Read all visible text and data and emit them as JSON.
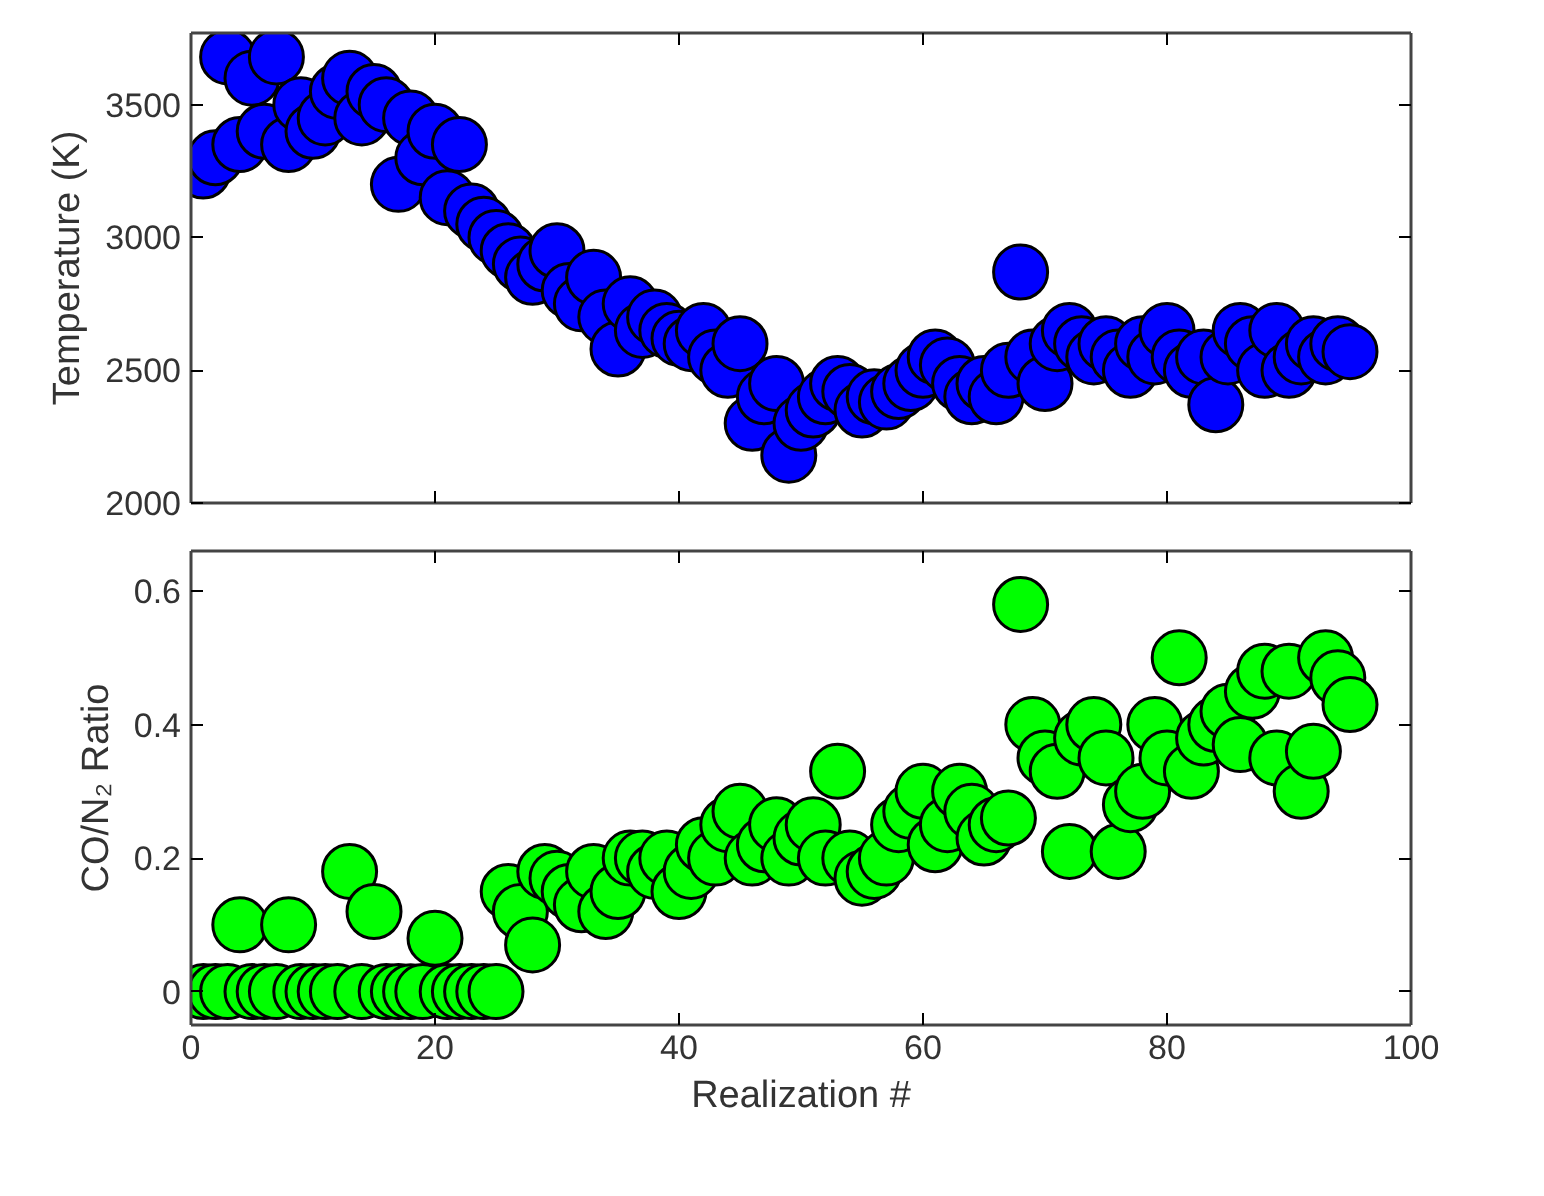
{
  "chart_data": [
    {
      "type": "scatter",
      "ylabel": "Temperature (K)",
      "xlim": [
        0,
        100
      ],
      "xticks": [
        0,
        20,
        40,
        60,
        80,
        100
      ],
      "ylim": [
        2000,
        3770
      ],
      "yticks": [
        2000,
        2500,
        3000,
        3500
      ],
      "tick_labels": "y",
      "grid": false,
      "marker": "circle",
      "x": [
        1,
        2,
        3,
        4,
        5,
        6,
        7,
        8,
        9,
        10,
        11,
        12,
        13,
        14,
        15,
        16,
        17,
        18,
        19,
        20,
        21,
        22,
        23,
        24,
        25,
        26,
        27,
        28,
        29,
        30,
        31,
        32,
        33,
        34,
        35,
        36,
        37,
        38,
        39,
        40,
        41,
        42,
        43,
        44,
        45,
        46,
        47,
        48,
        49,
        50,
        51,
        52,
        53,
        54,
        55,
        56,
        57,
        58,
        59,
        60,
        61,
        62,
        63,
        64,
        65,
        66,
        67,
        68,
        69,
        70,
        71,
        72,
        73,
        74,
        75,
        76,
        77,
        78,
        79,
        80,
        81,
        82,
        83,
        84,
        85,
        86,
        87,
        88,
        89,
        90,
        91,
        92,
        93,
        94,
        95
      ],
      "series": [
        {
          "color": "#0000ff",
          "values": [
            3250,
            3300,
            3680,
            3350,
            3600,
            3400,
            3680,
            3350,
            3500,
            3400,
            3450,
            3550,
            3600,
            3450,
            3550,
            3500,
            3200,
            3450,
            3300,
            3400,
            3150,
            3350,
            3100,
            3050,
            3000,
            2950,
            2900,
            2850,
            2900,
            2950,
            2800,
            2750,
            2850,
            2700,
            2580,
            2750,
            2650,
            2700,
            2650,
            2620,
            2600,
            2650,
            2550,
            2500,
            2600,
            2300,
            2400,
            2450,
            2180,
            2300,
            2350,
            2400,
            2450,
            2420,
            2350,
            2400,
            2380,
            2420,
            2450,
            2500,
            2550,
            2520,
            2450,
            2400,
            2450,
            2400,
            2500,
            2870,
            2550,
            2450,
            2600,
            2650,
            2600,
            2550,
            2600,
            2550,
            2500,
            2600,
            2550,
            2650,
            2550,
            2500,
            2550,
            2370,
            2550,
            2650,
            2600,
            2500,
            2650,
            2500,
            2550,
            2600,
            2550,
            2600,
            2570
          ]
        }
      ]
    },
    {
      "type": "scatter",
      "xlabel": "Realization #",
      "ylabel": "CO/N₂ Ratio",
      "xlim": [
        0,
        100
      ],
      "xticks": [
        0,
        20,
        40,
        60,
        80,
        100
      ],
      "ylim": [
        -0.05,
        0.66
      ],
      "yticks": [
        0,
        0.2,
        0.4,
        0.6
      ],
      "grid": false,
      "marker": "circle",
      "x": [
        1,
        2,
        3,
        4,
        5,
        6,
        7,
        8,
        9,
        10,
        11,
        12,
        13,
        14,
        15,
        16,
        17,
        18,
        19,
        20,
        21,
        22,
        23,
        24,
        25,
        26,
        27,
        28,
        29,
        30,
        31,
        32,
        33,
        34,
        35,
        36,
        37,
        38,
        39,
        40,
        41,
        42,
        43,
        44,
        45,
        46,
        47,
        48,
        49,
        50,
        51,
        52,
        53,
        54,
        55,
        56,
        57,
        58,
        59,
        60,
        61,
        62,
        63,
        64,
        65,
        66,
        67,
        68,
        69,
        70,
        71,
        72,
        73,
        74,
        75,
        76,
        77,
        78,
        79,
        80,
        81,
        82,
        83,
        84,
        85,
        86,
        87,
        88,
        89,
        90,
        91,
        92,
        93,
        94,
        95
      ],
      "series": [
        {
          "color": "#00ff00",
          "values": [
            0,
            0,
            0,
            0.1,
            0,
            0,
            0,
            0.1,
            0,
            0,
            0,
            0,
            0.18,
            0,
            0.12,
            0,
            0,
            0,
            0,
            0.08,
            0,
            0,
            0,
            0,
            0,
            0.15,
            0.12,
            0.07,
            0.18,
            0.17,
            0.15,
            0.13,
            0.18,
            0.12,
            0.15,
            0.2,
            0.2,
            0.18,
            0.2,
            0.15,
            0.18,
            0.22,
            0.2,
            0.25,
            0.27,
            0.2,
            0.22,
            0.25,
            0.2,
            0.23,
            0.25,
            0.2,
            0.33,
            0.2,
            0.17,
            0.18,
            0.2,
            0.25,
            0.27,
            0.3,
            0.22,
            0.25,
            0.3,
            0.27,
            0.23,
            0.25,
            0.26,
            0.58,
            0.4,
            0.35,
            0.33,
            0.21,
            0.38,
            0.4,
            0.35,
            0.21,
            0.28,
            0.3,
            0.4,
            0.35,
            0.5,
            0.33,
            0.38,
            0.4,
            0.42,
            0.37,
            0.45,
            0.48,
            0.35,
            0.48,
            0.3,
            0.36,
            0.5,
            0.47,
            0.43
          ]
        }
      ]
    }
  ]
}
